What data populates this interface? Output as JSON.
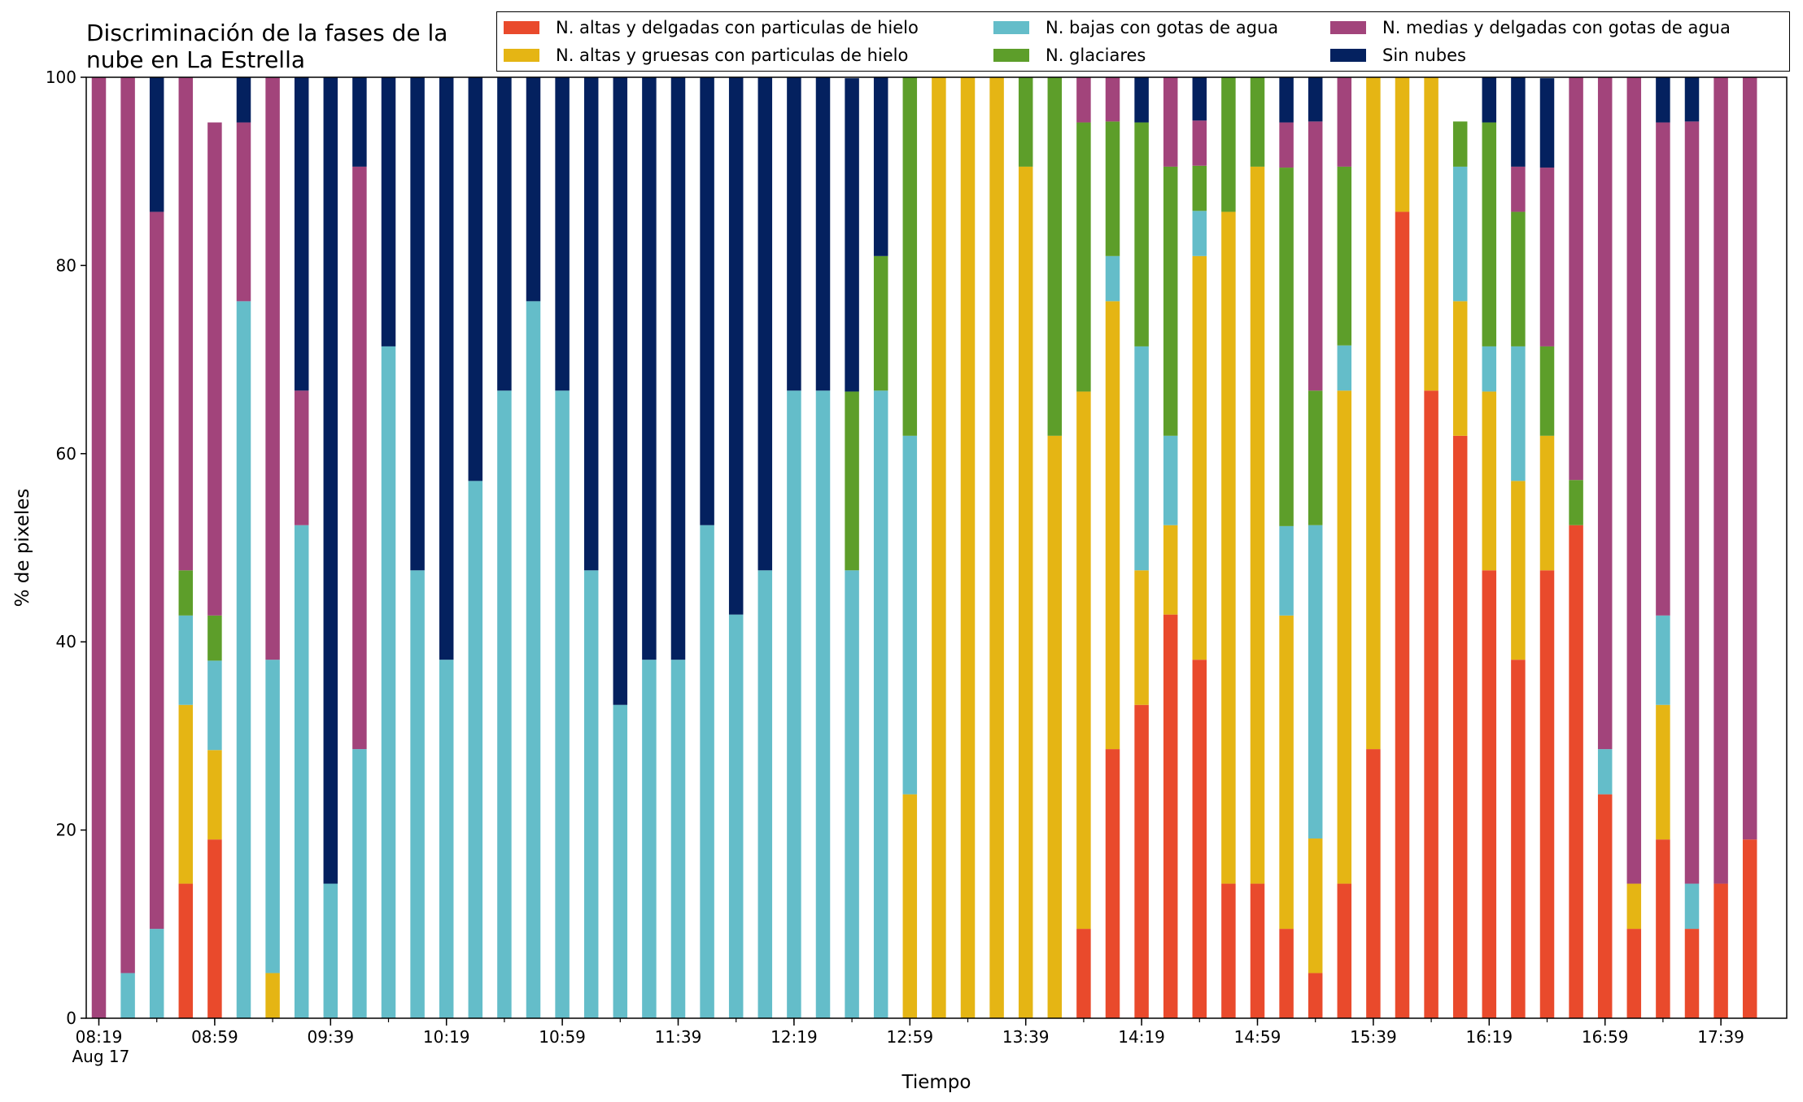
{
  "chart_data": {
    "type": "bar",
    "stacked": true,
    "title_lines": [
      "Discriminación de la fases de la",
      "nube en La Estrella"
    ],
    "xlabel": "Tiempo",
    "ylabel": "% de pixeles",
    "ylim": [
      0,
      100
    ],
    "yticks": [
      "0",
      "20",
      "40",
      "60",
      "80",
      "100"
    ],
    "xtick_labels": [
      "08:19",
      "08:59",
      "09:39",
      "10:19",
      "10:59",
      "11:39",
      "12:19",
      "12:59",
      "13:39",
      "14:19",
      "14:59",
      "15:39",
      "16:19",
      "16:59",
      "17:39"
    ],
    "x_date_label": "Aug 17",
    "times": [
      "08:19",
      "08:29",
      "08:39",
      "08:49",
      "08:59",
      "09:09",
      "09:19",
      "09:29",
      "09:39",
      "09:49",
      "09:59",
      "10:09",
      "10:19",
      "10:29",
      "10:39",
      "10:49",
      "10:59",
      "11:09",
      "11:19",
      "11:29",
      "11:39",
      "11:49",
      "11:59",
      "12:09",
      "12:19",
      "12:29",
      "12:39",
      "12:49",
      "12:59",
      "13:09",
      "13:19",
      "13:29",
      "13:39",
      "13:49",
      "13:59",
      "14:09",
      "14:19",
      "14:29",
      "14:39",
      "14:49",
      "14:59",
      "15:09",
      "15:19",
      "15:29",
      "15:39",
      "15:49",
      "15:59",
      "16:09",
      "16:19",
      "16:29",
      "16:39",
      "16:49",
      "16:59",
      "17:09",
      "17:19",
      "17:29",
      "17:39",
      "17:49"
    ],
    "legend_position": "top-right",
    "series": [
      {
        "name": "N. altas y delgadas con particulas de hielo",
        "color": "#e94a2c",
        "values": [
          0,
          0,
          0,
          14.3,
          19,
          0,
          0,
          0,
          0,
          0,
          0,
          0,
          0,
          0,
          0,
          0,
          0,
          0,
          0,
          0,
          0,
          0,
          0,
          0,
          0,
          0,
          0,
          0,
          0,
          0,
          0,
          0,
          0,
          0,
          9.5,
          28.6,
          33.3,
          42.9,
          38.1,
          14.3,
          14.3,
          9.5,
          4.8,
          14.3,
          28.6,
          85.7,
          66.7,
          61.9,
          47.6,
          38.1,
          47.6,
          52.4,
          23.8,
          9.5,
          19,
          9.5,
          14.3,
          19
        ]
      },
      {
        "name": "N. altas y gruesas con particulas de hielo",
        "color": "#e5b514",
        "values": [
          0,
          0,
          0,
          19,
          9.5,
          0,
          4.8,
          0,
          0,
          0,
          0,
          0,
          0,
          0,
          0,
          0,
          0,
          0,
          0,
          0,
          0,
          0,
          0,
          0,
          0,
          0,
          0,
          0,
          23.8,
          100,
          100,
          100,
          90.5,
          61.9,
          57.1,
          47.6,
          14.3,
          9.5,
          42.9,
          71.4,
          76.2,
          33.3,
          14.3,
          52.4,
          71.4,
          14.3,
          33.3,
          14.3,
          19,
          19,
          14.3,
          0,
          0,
          4.8,
          14.3,
          0,
          0,
          0
        ]
      },
      {
        "name": "N. bajas con gotas de agua",
        "color": "#64bdc9",
        "values": [
          0,
          4.8,
          9.5,
          9.5,
          9.5,
          76.2,
          33.3,
          52.4,
          14.3,
          28.6,
          71.4,
          47.6,
          38.1,
          57.1,
          66.7,
          76.2,
          66.7,
          47.6,
          33.3,
          38.1,
          38.1,
          52.4,
          42.9,
          47.6,
          66.7,
          66.7,
          47.6,
          66.7,
          38.1,
          0,
          0,
          0,
          0,
          0,
          0,
          4.8,
          23.8,
          9.5,
          4.8,
          0,
          0,
          9.5,
          33.3,
          4.8,
          0,
          0,
          0,
          14.3,
          4.8,
          14.3,
          0,
          0,
          4.8,
          0,
          9.5,
          4.8,
          0,
          0
        ]
      },
      {
        "name": "N. glaciares",
        "color": "#5d9e2a",
        "values": [
          0,
          0,
          0,
          4.8,
          4.8,
          0,
          0,
          0,
          0,
          0,
          0,
          0,
          0,
          0,
          0,
          0,
          0,
          0,
          0,
          0,
          0,
          0,
          0,
          0,
          0,
          0,
          19,
          14.3,
          38.1,
          0,
          0,
          0,
          9.5,
          38.1,
          28.6,
          14.3,
          23.8,
          28.6,
          4.8,
          14.3,
          9.5,
          38.1,
          14.3,
          19,
          0,
          0,
          0,
          4.8,
          23.8,
          14.3,
          9.5,
          4.8,
          0,
          0,
          0,
          0,
          0,
          0
        ]
      },
      {
        "name": "N. medias y delgadas con gotas de agua",
        "color": "#a2447b",
        "values": [
          100,
          95.2,
          76.2,
          52.4,
          52.4,
          19,
          61.9,
          14.3,
          0,
          61.9,
          0,
          0,
          0,
          0,
          0,
          0,
          0,
          0,
          0,
          0,
          0,
          0,
          0,
          0,
          0,
          0,
          0,
          0,
          0,
          0,
          0,
          0,
          0,
          0,
          4.8,
          4.8,
          0,
          9.5,
          4.8,
          0,
          0,
          4.8,
          28.6,
          9.5,
          0,
          0,
          0,
          0,
          0,
          4.8,
          19,
          42.9,
          71.4,
          85.7,
          52.4,
          81,
          85.7,
          81
        ]
      },
      {
        "name": "Sin nubes",
        "color": "#04215f",
        "values": [
          0,
          0,
          14.3,
          0,
          0,
          4.8,
          0,
          33.3,
          85.7,
          9.5,
          28.6,
          52.4,
          61.9,
          42.9,
          33.3,
          23.8,
          33.3,
          52.4,
          66.7,
          61.9,
          61.9,
          47.6,
          57.1,
          52.4,
          33.3,
          33.3,
          33.3,
          19,
          0,
          0,
          0,
          0,
          0,
          0,
          0,
          0,
          4.8,
          0,
          4.8,
          0,
          0,
          4.8,
          4.8,
          0,
          0,
          0,
          0,
          0,
          4.8,
          9.5,
          9.5,
          0,
          0,
          0,
          4.8,
          4.8,
          0,
          0
        ]
      }
    ]
  }
}
